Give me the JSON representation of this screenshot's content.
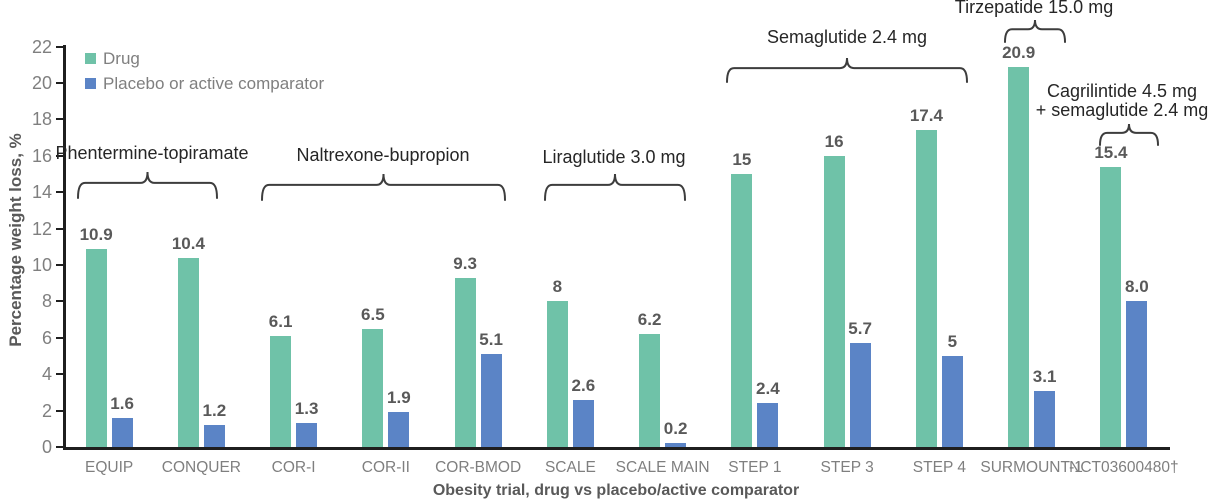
{
  "chart_data": {
    "type": "bar",
    "title": "",
    "xlabel": "Obesity trial, drug vs placebo/active comparator",
    "ylabel": "Percentage weight loss, %",
    "ylim": [
      0,
      22
    ],
    "ytick_step": 2,
    "grid": false,
    "legend_position": "top-left",
    "categories": [
      "EQUIP",
      "CONQUER",
      "COR-I",
      "COR-II",
      "COR-BMOD",
      "SCALE",
      "SCALE MAIN",
      "STEP 1",
      "STEP 3",
      "STEP 4",
      "SURMOUNT-1",
      "NCT03600480†"
    ],
    "series": [
      {
        "name": "Drug",
        "color": "#6FC2A8",
        "values": [
          10.9,
          10.4,
          6.1,
          6.5,
          9.3,
          8,
          6.2,
          15,
          16,
          17.4,
          20.9,
          15.4
        ],
        "labels": [
          "10.9",
          "10.4",
          "6.1",
          "6.5",
          "9.3",
          "8",
          "6.2",
          "15",
          "16",
          "17.4",
          "20.9",
          "15.4"
        ]
      },
      {
        "name": "Placebo or active comparator",
        "color": "#5B84C6",
        "values": [
          1.6,
          1.2,
          1.3,
          1.9,
          5.1,
          2.6,
          0.2,
          2.4,
          5.7,
          5,
          3.1,
          8
        ],
        "labels": [
          "1.6",
          "1.2",
          "1.3",
          "1.9",
          "5.1",
          "2.6",
          "0.2",
          "2.4",
          "5.7",
          "5",
          "3.1",
          "8.0"
        ]
      }
    ],
    "annotations": [
      {
        "lines": [
          "Phentermine-topiramate"
        ],
        "span_categories": [
          "EQUIP",
          "CONQUER"
        ]
      },
      {
        "lines": [
          "Naltrexone-bupropion"
        ],
        "span_categories": [
          "COR-I",
          "COR-BMOD"
        ]
      },
      {
        "lines": [
          "Liraglutide 3.0 mg"
        ],
        "span_categories": [
          "SCALE",
          "SCALE MAIN"
        ]
      },
      {
        "lines": [
          "Semaglutide 2.4 mg"
        ],
        "span_categories": [
          "STEP 1",
          "STEP 4"
        ]
      },
      {
        "lines": [
          "Tirzepatide 15.0 mg"
        ],
        "span_categories": [
          "SURMOUNT-1"
        ]
      },
      {
        "lines": [
          "Cagrilintide 4.5 mg",
          "+ semaglutide 2.4 mg"
        ],
        "span_categories": [
          "NCT03600480†"
        ]
      }
    ],
    "colors": {
      "axis": "#1f1f1f",
      "tick_text": "#7f7f7f",
      "value_text": "#595959",
      "annotation_text": "#262626",
      "brace_stroke": "#3d3d3d"
    }
  }
}
